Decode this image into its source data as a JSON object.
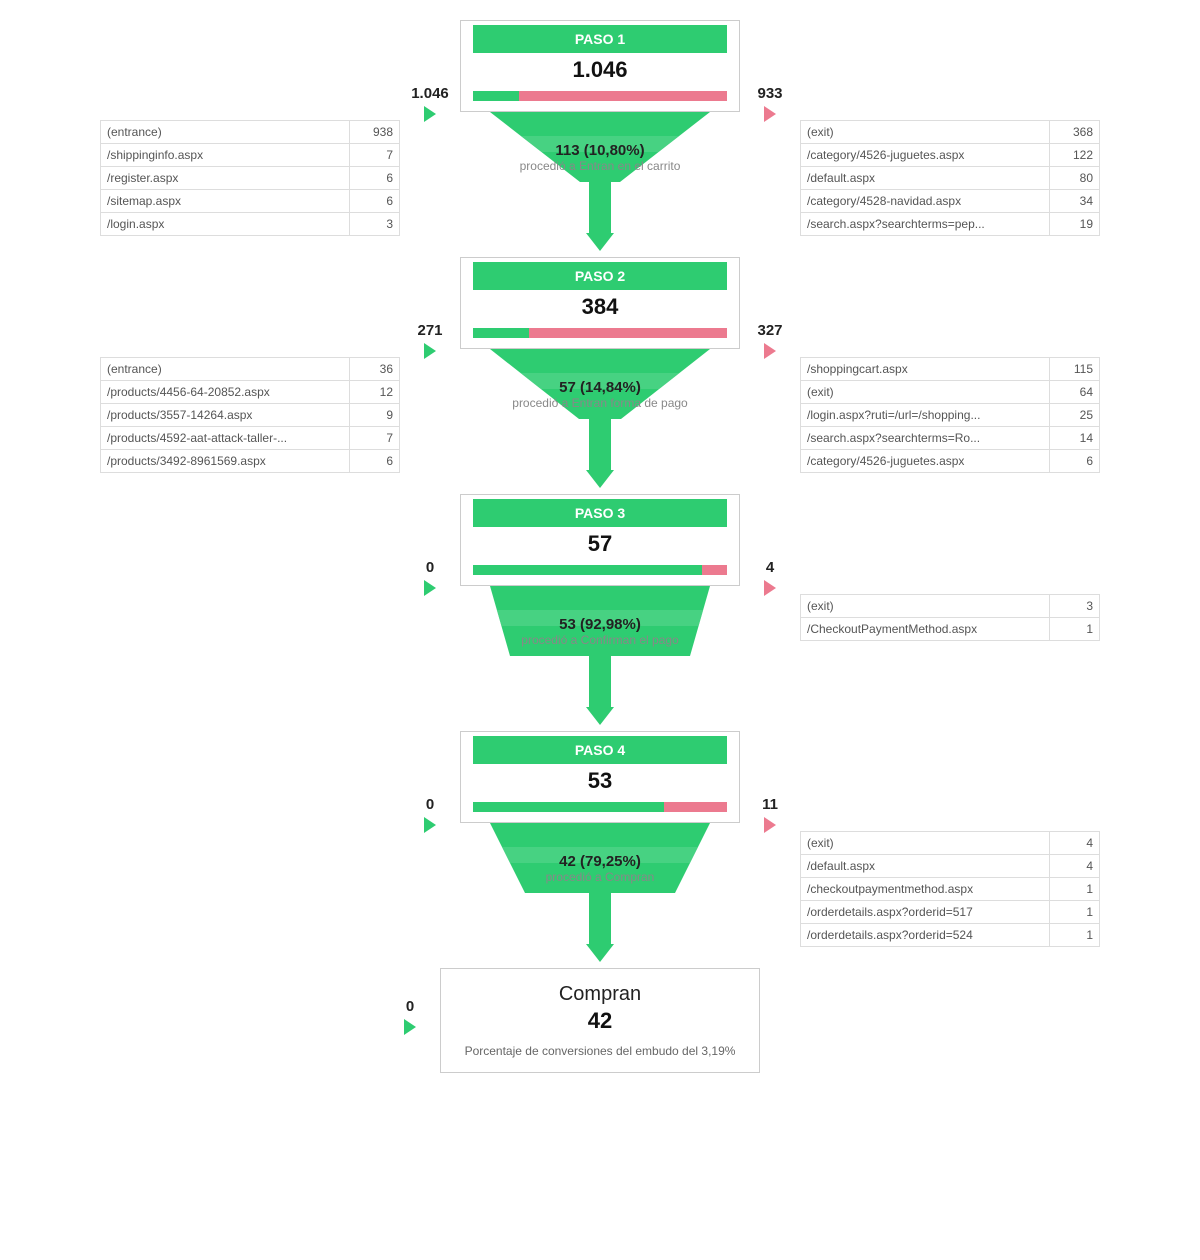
{
  "colors": {
    "green": "#2ecc71",
    "green_light": "#58d68d",
    "red": "#e74c6c",
    "red_light": "#ec7a8f",
    "border": "#cccccc",
    "text_muted": "#888888"
  },
  "steps": [
    {
      "label": "PASO 1",
      "total": "1.046",
      "in_value": "1.046",
      "out_value": "933",
      "bar_green_pct": 18,
      "proceed_value": "113 (10,80%)",
      "proceed_text": "procedió a Entran en el carrito",
      "funnel_top_width": 220,
      "funnel_bottom_width": 40,
      "in_rows": [
        [
          "(entrance)",
          "938"
        ],
        [
          "/shippinginfo.aspx",
          "7"
        ],
        [
          "/register.aspx",
          "6"
        ],
        [
          "/sitemap.aspx",
          "6"
        ],
        [
          "/login.aspx",
          "3"
        ]
      ],
      "out_rows": [
        [
          "(exit)",
          "368"
        ],
        [
          "/category/4526-juguetes.aspx",
          "122"
        ],
        [
          "/default.aspx",
          "80"
        ],
        [
          "/category/4528-navidad.aspx",
          "34"
        ],
        [
          "/search.aspx?searchterms=pep...",
          "19"
        ]
      ]
    },
    {
      "label": "PASO 2",
      "total": "384",
      "in_value": "271",
      "out_value": "327",
      "bar_green_pct": 22,
      "proceed_value": "57 (14,84%)",
      "proceed_text": "procedió a Entran forma de pago",
      "funnel_top_width": 220,
      "funnel_bottom_width": 42,
      "in_rows": [
        [
          "(entrance)",
          "36"
        ],
        [
          "/products/4456-64-20852.aspx",
          "12"
        ],
        [
          "/products/3557-14264.aspx",
          "9"
        ],
        [
          "/products/4592-aat-attack-taller-...",
          "7"
        ],
        [
          "/products/3492-8961569.aspx",
          "6"
        ]
      ],
      "out_rows": [
        [
          "/shoppingcart.aspx",
          "115"
        ],
        [
          "(exit)",
          "64"
        ],
        [
          "/login.aspx?ruti=/url=/shopping...",
          "25"
        ],
        [
          "/search.aspx?searchterms=Ro...",
          "14"
        ],
        [
          "/category/4526-juguetes.aspx",
          "6"
        ]
      ]
    },
    {
      "label": "PASO 3",
      "total": "57",
      "in_value": "0",
      "out_value": "4",
      "bar_green_pct": 90,
      "proceed_value": "53 (92,98%)",
      "proceed_text": "procedió a Confirman el pago",
      "funnel_top_width": 220,
      "funnel_bottom_width": 180,
      "in_rows": [],
      "out_rows": [
        [
          "(exit)",
          "3"
        ],
        [
          "/CheckoutPaymentMethod.aspx",
          "1"
        ]
      ]
    },
    {
      "label": "PASO 4",
      "total": "53",
      "in_value": "0",
      "out_value": "11",
      "bar_green_pct": 75,
      "proceed_value": "42 (79,25%)",
      "proceed_text": "procedió a Compran",
      "funnel_top_width": 220,
      "funnel_bottom_width": 150,
      "in_rows": [],
      "out_rows": [
        [
          "(exit)",
          "4"
        ],
        [
          "/default.aspx",
          "4"
        ],
        [
          "/checkoutpaymentmethod.aspx",
          "1"
        ],
        [
          "/orderdetails.aspx?orderid=517",
          "1"
        ],
        [
          "/orderdetails.aspx?orderid=524",
          "1"
        ]
      ]
    }
  ],
  "final": {
    "title": "Compran",
    "total": "42",
    "in_value": "0",
    "sub": "Porcentaje de conversiones del embudo del 3,19%"
  }
}
